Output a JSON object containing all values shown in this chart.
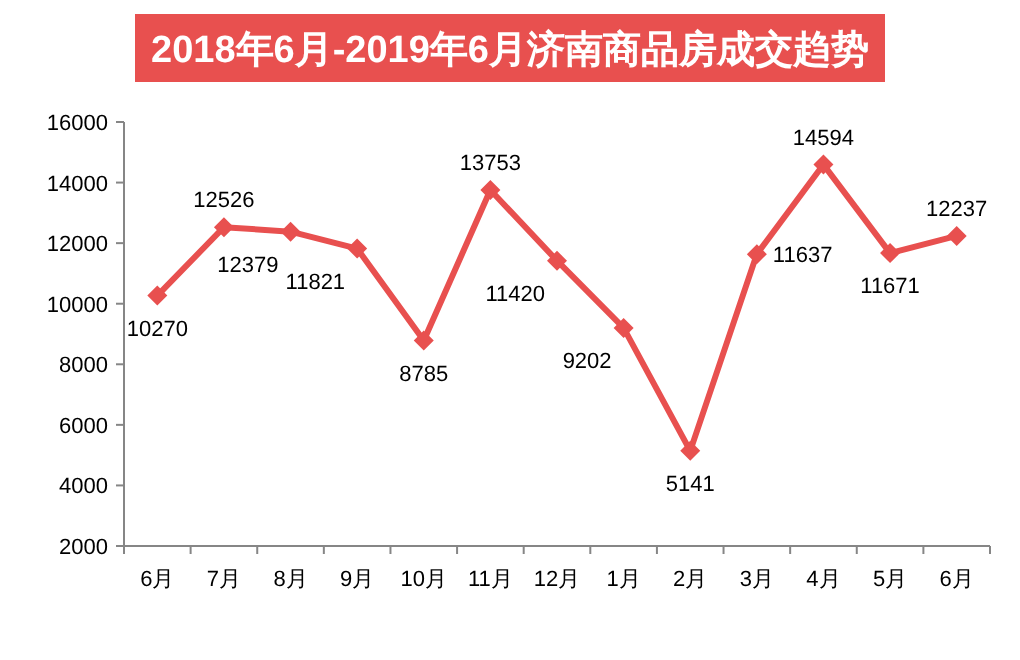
{
  "chart_data": {
    "type": "line",
    "title": "2018年6月-2019年6月济南商品房成交趋势",
    "categories": [
      "6月",
      "7月",
      "8月",
      "9月",
      "10月",
      "11月",
      "12月",
      "1月",
      "2月",
      "3月",
      "4月",
      "5月",
      "6月"
    ],
    "series": [
      {
        "color": "#e8504f",
        "values": [
          10270,
          12526,
          12379,
          11821,
          8785,
          13753,
          11420,
          9202,
          5141,
          11637,
          14594,
          11671,
          12237
        ]
      }
    ],
    "ylim": [
      2000,
      16000
    ],
    "yticks": [
      2000,
      4000,
      6000,
      8000,
      10000,
      12000,
      14000,
      16000
    ],
    "grid": false,
    "marker": "diamond",
    "line_style": "solid",
    "data_labels": true
  }
}
